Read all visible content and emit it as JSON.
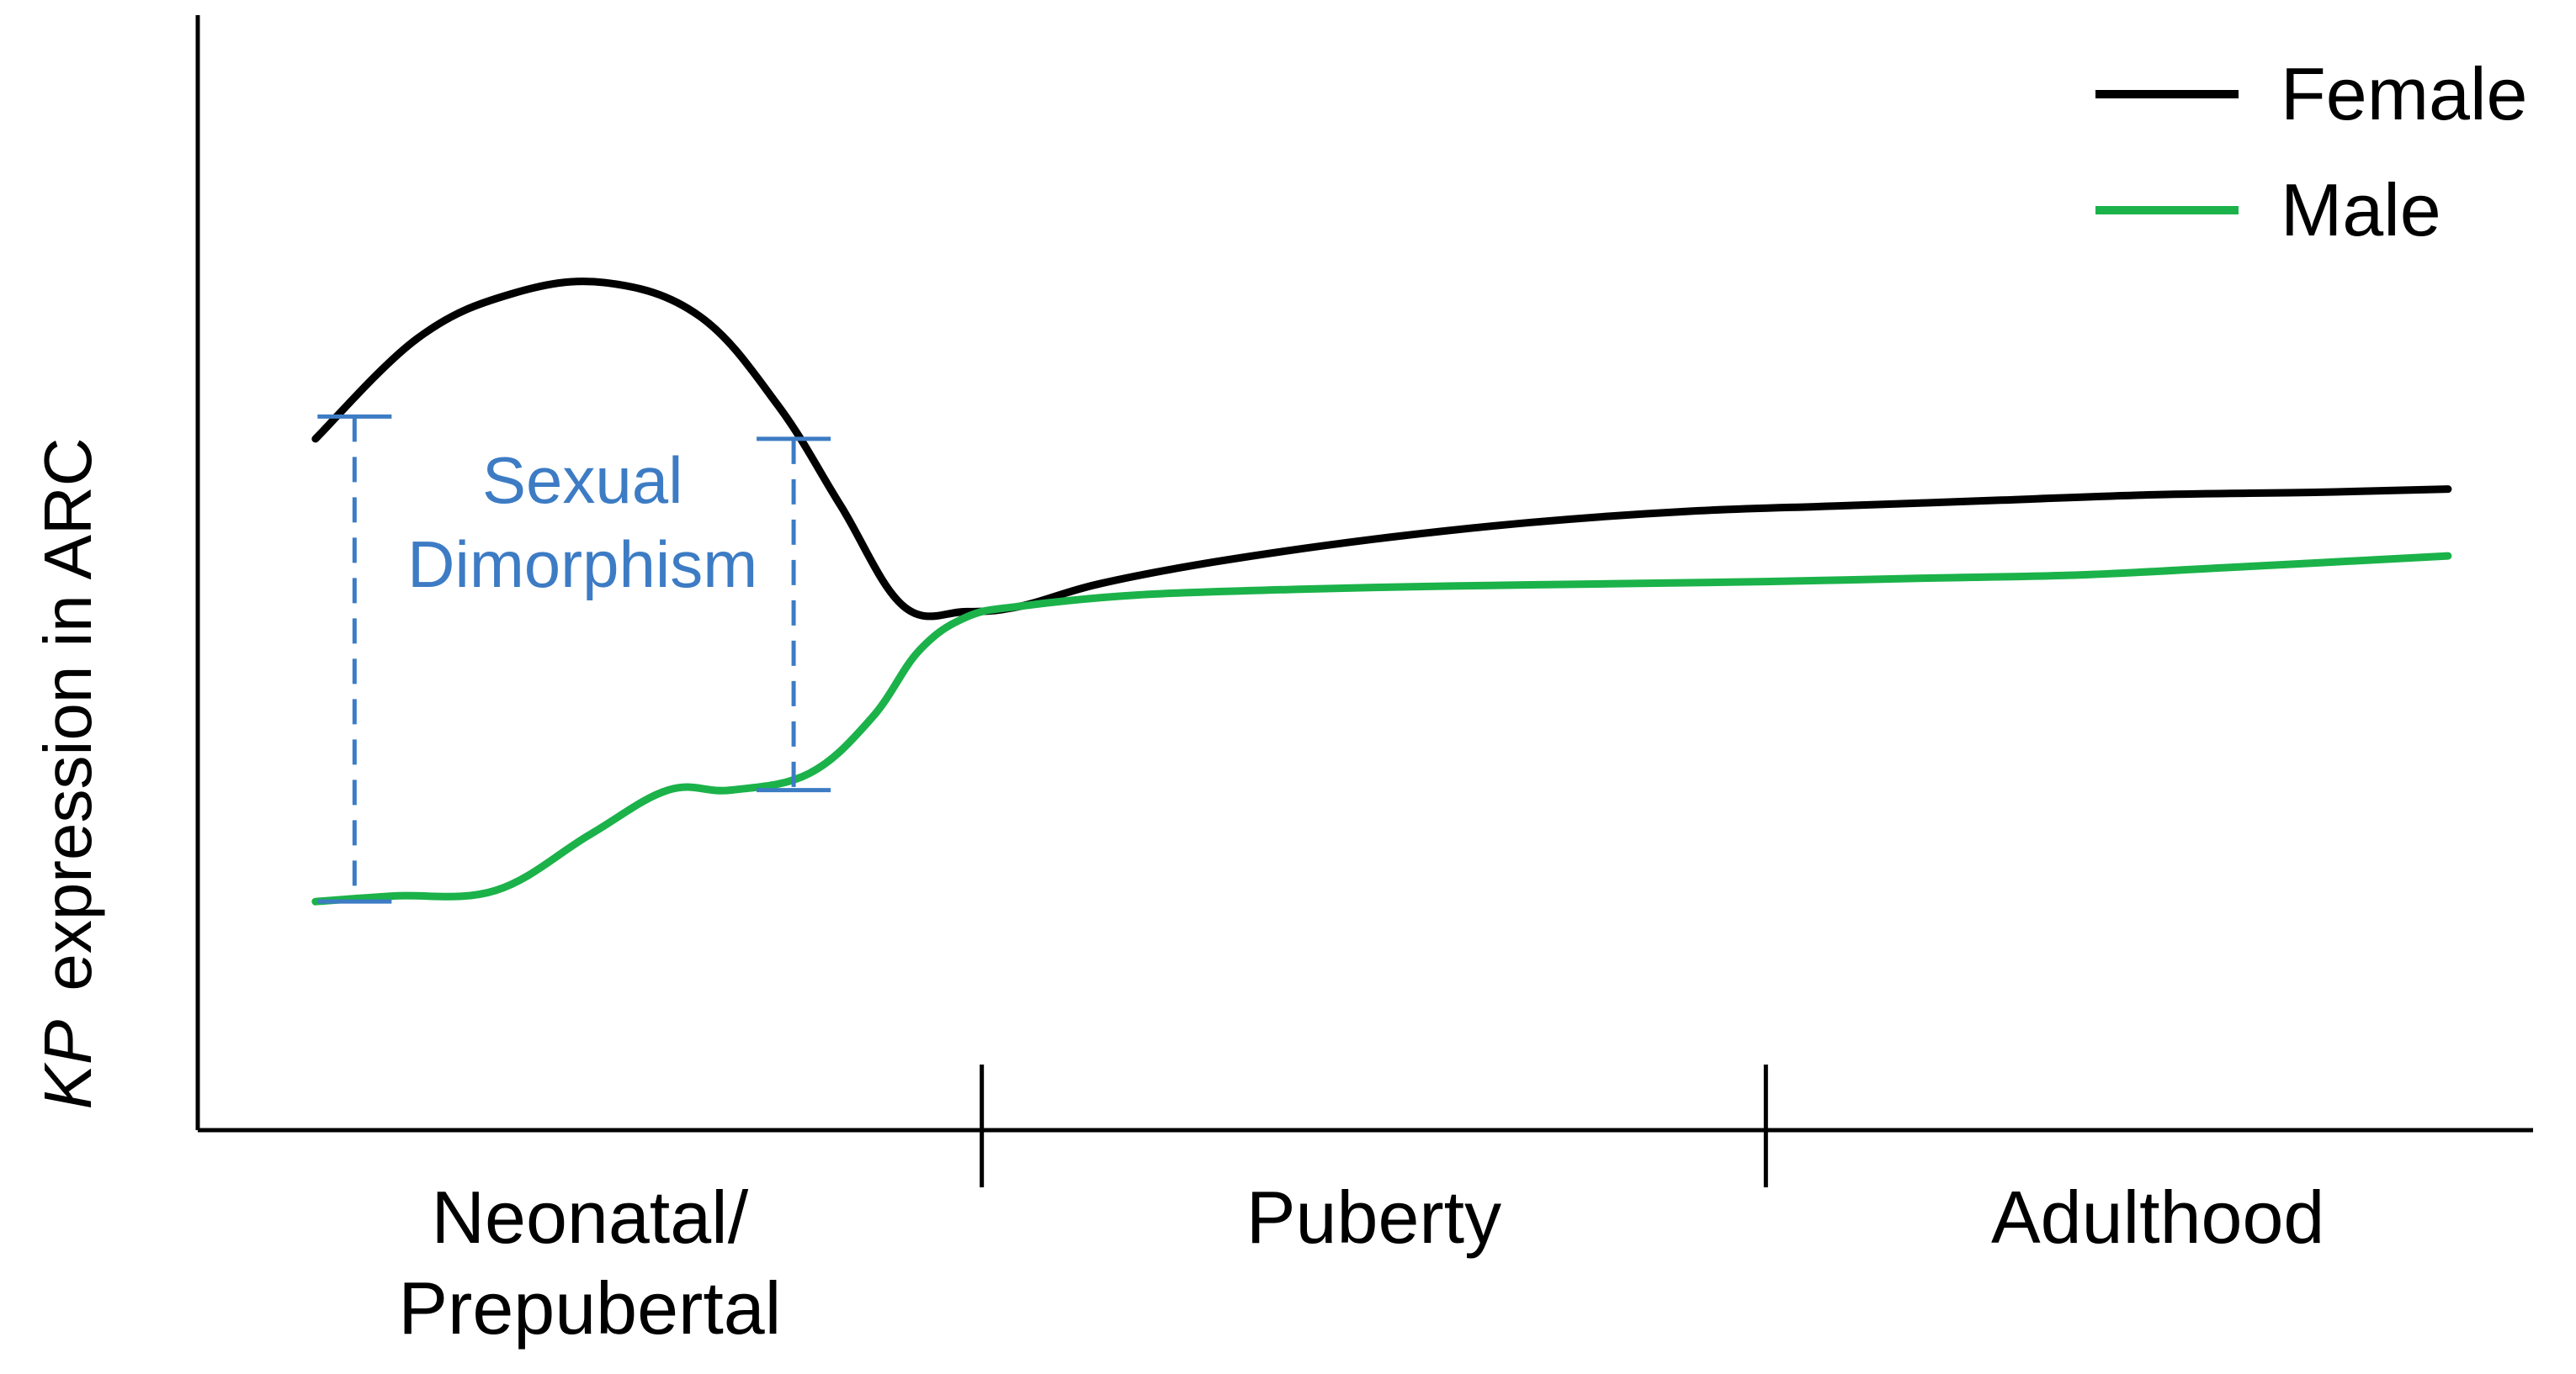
{
  "chart_data": {
    "type": "line",
    "title": "",
    "ylabel_italic": "KP",
    "ylabel_rest": "expression in ARC",
    "xlabel": "",
    "grid": false,
    "legend_position": "top-right",
    "x_domain": [
      0,
      3
    ],
    "y_domain": [
      0,
      10
    ],
    "stages": [
      {
        "label_lines": [
          "Neonatal/",
          "Prepubertal"
        ],
        "start": 0,
        "end": 1
      },
      {
        "label_lines": [
          "Puberty"
        ],
        "start": 1,
        "end": 2
      },
      {
        "label_lines": [
          "Adulthood"
        ],
        "start": 2,
        "end": 3
      }
    ],
    "stage_boundaries": [
      1,
      2
    ],
    "series": [
      {
        "name": "Female",
        "color": "#000000",
        "x": [
          0.15,
          0.28,
          0.4,
          0.52,
          0.64,
          0.74,
          0.82,
          0.9,
          0.98,
          1.05,
          1.15,
          1.3,
          1.5,
          1.7,
          1.9,
          2.1,
          2.3,
          2.5,
          2.7,
          2.87
        ],
        "y": [
          6.2,
          7.1,
          7.5,
          7.6,
          7.3,
          6.5,
          5.6,
          4.7,
          4.65,
          4.7,
          4.9,
          5.1,
          5.3,
          5.45,
          5.55,
          5.6,
          5.65,
          5.7,
          5.72,
          5.75
        ]
      },
      {
        "name": "Male",
        "color": "#1bb24a",
        "x": [
          0.15,
          0.25,
          0.38,
          0.5,
          0.6,
          0.68,
          0.78,
          0.86,
          0.92,
          0.98,
          1.05,
          1.2,
          1.4,
          1.6,
          1.8,
          2.0,
          2.2,
          2.4,
          2.6,
          2.87
        ],
        "y": [
          2.05,
          2.1,
          2.15,
          2.65,
          3.05,
          3.05,
          3.2,
          3.7,
          4.3,
          4.6,
          4.7,
          4.8,
          4.85,
          4.88,
          4.9,
          4.92,
          4.95,
          4.98,
          5.05,
          5.15
        ]
      }
    ],
    "annotation": {
      "text_lines": [
        "Sexual",
        "Dimorphism"
      ],
      "color": "#3d7cc4",
      "brackets": [
        {
          "x": 0.2,
          "y_low": 2.05,
          "y_high": 6.4
        },
        {
          "x": 0.76,
          "y_low": 3.05,
          "y_high": 6.2
        }
      ]
    }
  }
}
